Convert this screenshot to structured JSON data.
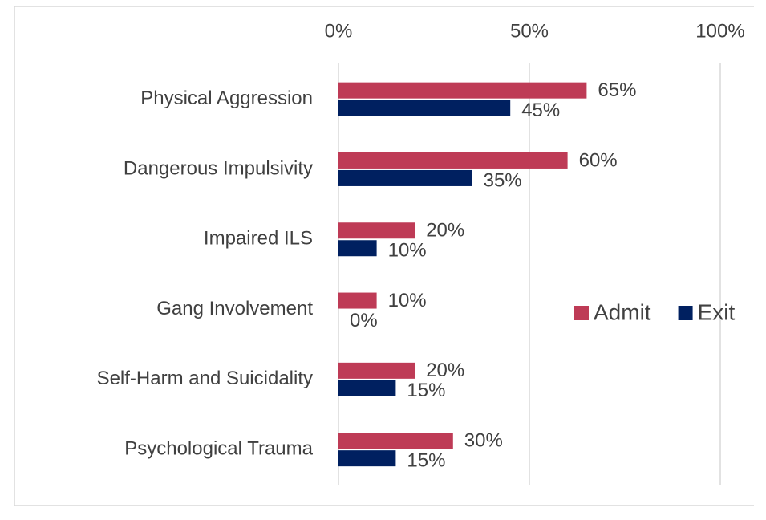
{
  "chart_data": {
    "type": "bar",
    "orientation": "horizontal",
    "categories": [
      "Physical Aggression",
      "Dangerous Impulsivity",
      "Impaired ILS",
      "Gang Involvement",
      "Self-Harm and Suicidality",
      "Psychological Trauma"
    ],
    "series": [
      {
        "name": "Admit",
        "color": "#be3b56",
        "values": [
          65,
          60,
          20,
          10,
          20,
          30
        ],
        "value_labels": [
          "65%",
          "60%",
          "20%",
          "10%",
          "20%",
          "30%"
        ]
      },
      {
        "name": "Exit",
        "color": "#002060",
        "values": [
          45,
          35,
          10,
          0,
          15,
          15
        ],
        "value_labels": [
          "45%",
          "35%",
          "10%",
          "0%",
          "15%",
          "15%"
        ]
      }
    ],
    "xlim": [
      0,
      100
    ],
    "xticks": [
      {
        "value": 0,
        "label": "0%"
      },
      {
        "value": 50,
        "label": "50%"
      },
      {
        "value": 100,
        "label": "100%"
      }
    ],
    "grid": true,
    "legend": "right"
  }
}
